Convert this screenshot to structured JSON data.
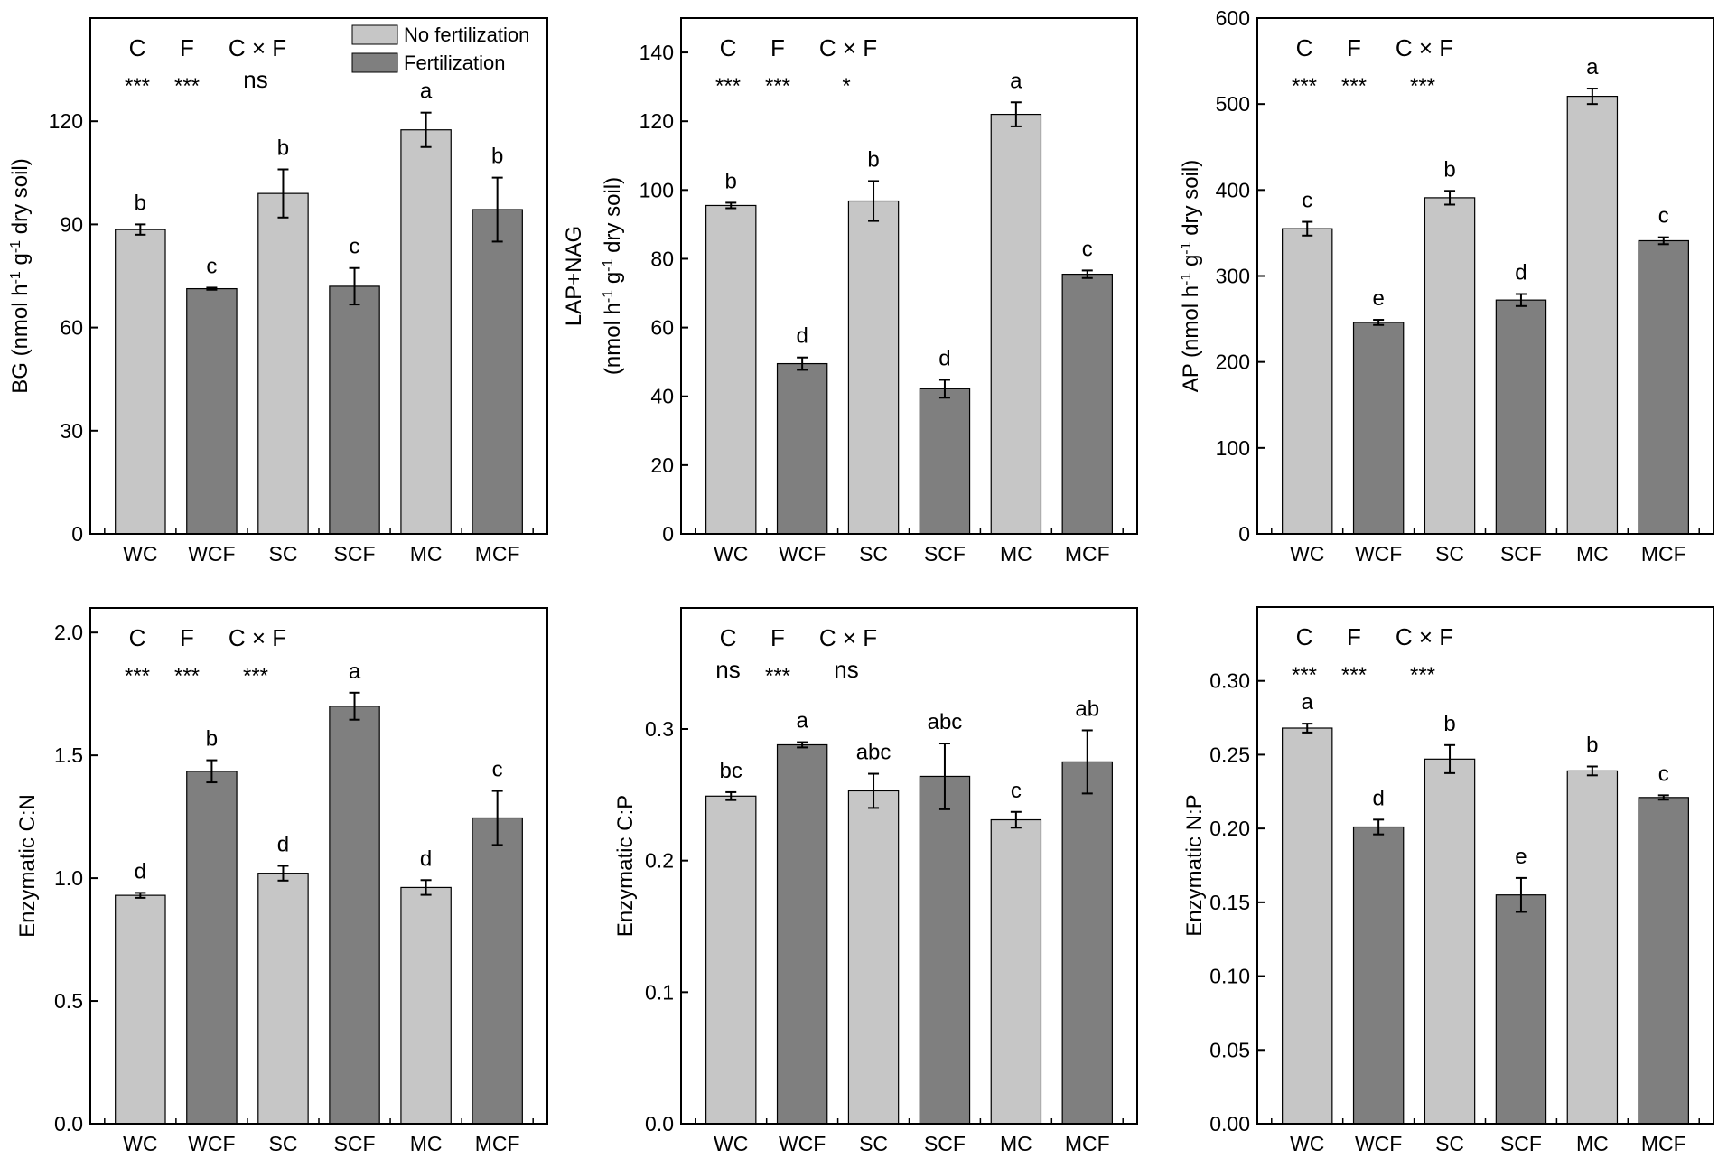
{
  "chart_data": [
    {
      "type": "bar",
      "id": "bg",
      "ylabel": [
        "BG (nmol h",
        "-1",
        " g",
        "-1",
        " dry soil)"
      ],
      "ylabel_lines": 1,
      "categories": [
        "WC",
        "WCF",
        "SC",
        "SCF",
        "MC",
        "MCF"
      ],
      "groups": [
        "No fertilization",
        "Fertilization",
        "No fertilization",
        "Fertilization",
        "No fertilization",
        "Fertilization"
      ],
      "values": [
        88.5,
        71.3,
        99.0,
        72.0,
        117.5,
        94.3
      ],
      "errors": [
        1.5,
        0.3,
        7.0,
        5.3,
        5.0,
        9.3
      ],
      "letters": [
        "b",
        "c",
        "b",
        "c",
        "a",
        "b"
      ],
      "ylim": [
        0,
        150
      ],
      "yticks": [
        0,
        30,
        60,
        90,
        120
      ],
      "ytick_labels": [
        "0",
        "30",
        "60",
        "90",
        "120"
      ],
      "effects": {
        "labels": [
          "C",
          "F",
          "C × F"
        ],
        "significance": [
          "***",
          "***",
          "ns"
        ]
      },
      "legend": true
    },
    {
      "type": "bar",
      "id": "lap-nag",
      "ylabel_line1": "LAP+NAG",
      "ylabel": [
        "(nmol h",
        "-1",
        " g",
        "-1",
        " dry soil)"
      ],
      "ylabel_lines": 2,
      "categories": [
        "WC",
        "WCF",
        "SC",
        "SCF",
        "MC",
        "MCF"
      ],
      "groups": [
        "No fertilization",
        "Fertilization",
        "No fertilization",
        "Fertilization",
        "No fertilization",
        "Fertilization"
      ],
      "values": [
        95.5,
        49.5,
        96.8,
        42.2,
        122.0,
        75.5
      ],
      "errors": [
        0.8,
        1.8,
        5.8,
        2.6,
        3.5,
        1.1
      ],
      "letters": [
        "b",
        "d",
        "b",
        "d",
        "a",
        "c"
      ],
      "ylim": [
        0,
        150
      ],
      "yticks": [
        0,
        20,
        40,
        60,
        80,
        100,
        120,
        140
      ],
      "ytick_labels": [
        "0",
        "20",
        "40",
        "60",
        "80",
        "100",
        "120",
        "140"
      ],
      "effects": {
        "labels": [
          "C",
          "F",
          "C × F"
        ],
        "significance": [
          "***",
          "***",
          "*"
        ]
      },
      "legend": false
    },
    {
      "type": "bar",
      "id": "ap",
      "ylabel": [
        "AP (nmol h",
        "-1",
        " g",
        "-1",
        " dry soil)"
      ],
      "ylabel_lines": 1,
      "categories": [
        "WC",
        "WCF",
        "SC",
        "SCF",
        "MC",
        "MCF"
      ],
      "groups": [
        "No fertilization",
        "Fertilization",
        "No fertilization",
        "Fertilization",
        "No fertilization",
        "Fertilization"
      ],
      "values": [
        355,
        246,
        391,
        272,
        509,
        341
      ],
      "errors": [
        8,
        3,
        8,
        7,
        9,
        4
      ],
      "letters": [
        "c",
        "e",
        "b",
        "d",
        "a",
        "c"
      ],
      "ylim": [
        0,
        600
      ],
      "yticks": [
        0,
        100,
        200,
        300,
        400,
        500,
        600
      ],
      "ytick_labels": [
        "0",
        "100",
        "200",
        "300",
        "400",
        "500",
        "600"
      ],
      "effects": {
        "labels": [
          "C",
          "F",
          "C × F"
        ],
        "significance": [
          "***",
          "***",
          "***"
        ]
      },
      "legend": false
    },
    {
      "type": "bar",
      "id": "cn",
      "ylabel": [
        "Enzymatic C:N"
      ],
      "ylabel_lines": 1,
      "categories": [
        "WC",
        "WCF",
        "SC",
        "SCF",
        "MC",
        "MCF"
      ],
      "groups": [
        "No fertilization",
        "Fertilization",
        "No fertilization",
        "Fertilization",
        "No fertilization",
        "Fertilization"
      ],
      "values": [
        0.93,
        1.435,
        1.02,
        1.7,
        0.962,
        1.245
      ],
      "errors": [
        0.01,
        0.045,
        0.03,
        0.055,
        0.03,
        0.11
      ],
      "letters": [
        "d",
        "b",
        "d",
        "a",
        "d",
        "c"
      ],
      "ylim": [
        0,
        2.1
      ],
      "yticks": [
        0,
        0.5,
        1.0,
        1.5,
        2.0
      ],
      "ytick_labels": [
        "0.0",
        "0.5",
        "1.0",
        "1.5",
        "2.0"
      ],
      "effects": {
        "labels": [
          "C",
          "F",
          "C × F"
        ],
        "significance": [
          "***",
          "***",
          "***"
        ]
      },
      "legend": false
    },
    {
      "type": "bar",
      "id": "cp",
      "ylabel": [
        "Enzymatic C:P"
      ],
      "ylabel_lines": 1,
      "categories": [
        "WC",
        "WCF",
        "SC",
        "SCF",
        "MC",
        "MCF"
      ],
      "groups": [
        "No fertilization",
        "Fertilization",
        "No fertilization",
        "Fertilization",
        "No fertilization",
        "Fertilization"
      ],
      "values": [
        0.249,
        0.288,
        0.253,
        0.264,
        0.231,
        0.275
      ],
      "errors": [
        0.003,
        0.002,
        0.013,
        0.025,
        0.006,
        0.024
      ],
      "letters": [
        "bc",
        "a",
        "abc",
        "abc",
        "c",
        "ab"
      ],
      "ylim": [
        0,
        0.392
      ],
      "yticks": [
        0,
        0.1,
        0.2,
        0.3
      ],
      "ytick_labels": [
        "0.0",
        "0.1",
        "0.2",
        "0.3"
      ],
      "effects": {
        "labels": [
          "C",
          "F",
          "C × F"
        ],
        "significance": [
          "ns",
          "***",
          "ns"
        ]
      },
      "legend": false
    },
    {
      "type": "bar",
      "id": "np",
      "ylabel": [
        "Enzymatic N:P"
      ],
      "ylabel_lines": 1,
      "categories": [
        "WC",
        "WCF",
        "SC",
        "SCF",
        "MC",
        "MCF"
      ],
      "groups": [
        "No fertilization",
        "Fertilization",
        "No fertilization",
        "Fertilization",
        "No fertilization",
        "Fertilization"
      ],
      "values": [
        0.268,
        0.201,
        0.247,
        0.155,
        0.239,
        0.221
      ],
      "errors": [
        0.003,
        0.005,
        0.0095,
        0.0115,
        0.003,
        0.0015
      ],
      "letters": [
        "a",
        "d",
        "b",
        "e",
        "b",
        "c"
      ],
      "ylim": [
        0,
        0.35
      ],
      "yticks": [
        0,
        0.05,
        0.1,
        0.15,
        0.2,
        0.25,
        0.3
      ],
      "ytick_labels": [
        "0.00",
        "0.05",
        "0.10",
        "0.15",
        "0.20",
        "0.25",
        "0.30"
      ],
      "effects": {
        "labels": [
          "C",
          "F",
          "C × F"
        ],
        "significance": [
          "***",
          "***",
          "***"
        ]
      },
      "legend": false
    }
  ],
  "legend": {
    "entries": [
      {
        "label": "No fertilization",
        "color": "#c6c6c6"
      },
      {
        "label": "Fertilization",
        "color": "#7f7f7f"
      }
    ]
  },
  "colors": {
    "no_fertilization": "#c6c6c6",
    "fertilization": "#7f7f7f",
    "axis": "#000000"
  }
}
